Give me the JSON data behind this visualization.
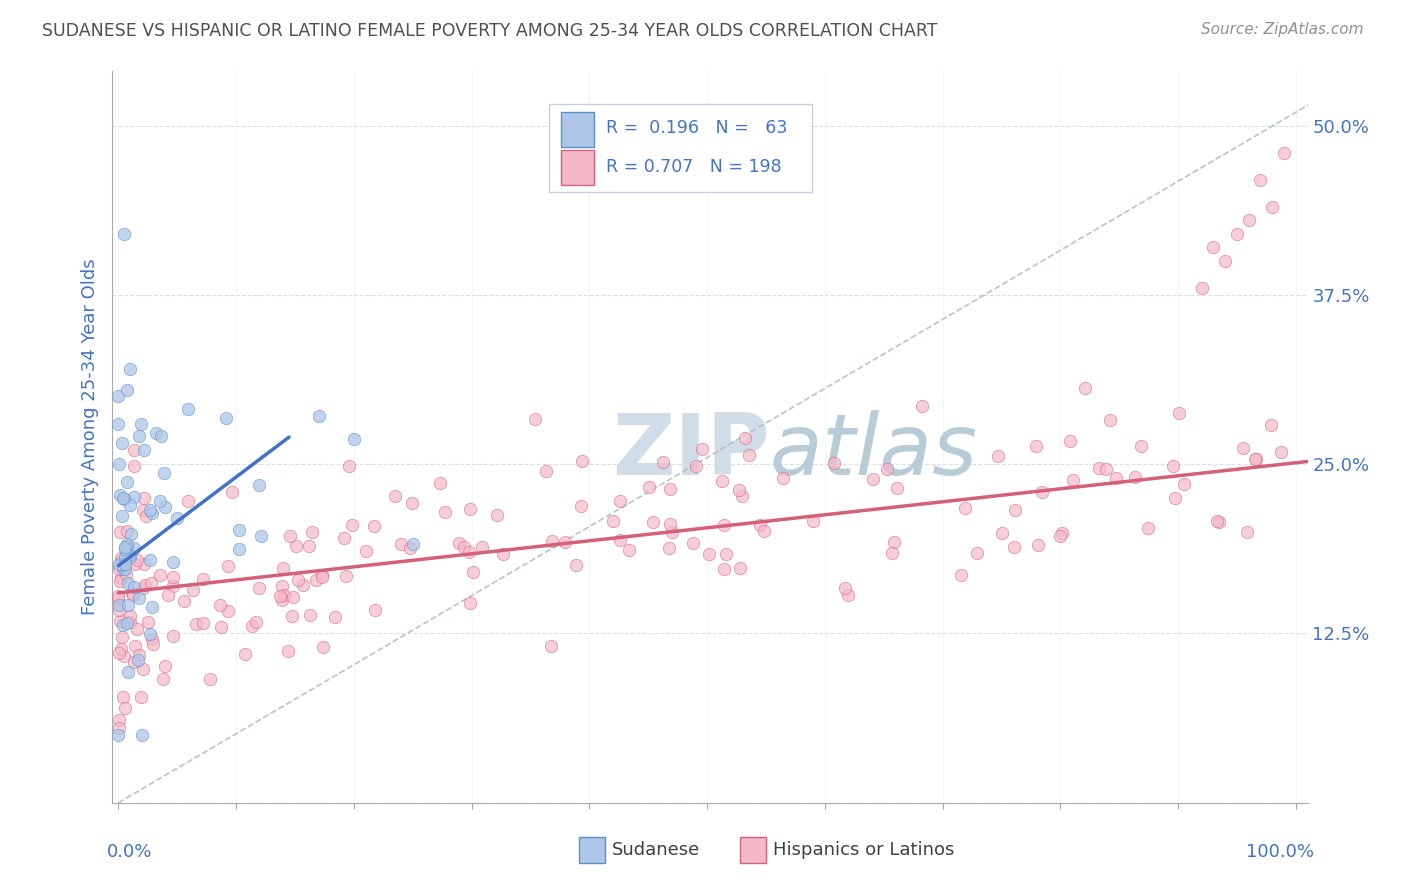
{
  "title": "SUDANESE VS HISPANIC OR LATINO FEMALE POVERTY AMONG 25-34 YEAR OLDS CORRELATION CHART",
  "source": "Source: ZipAtlas.com",
  "ylabel": "Female Poverty Among 25-34 Year Olds",
  "xlim": [
    -0.005,
    1.01
  ],
  "ylim": [
    0.0,
    0.54
  ],
  "yticks": [
    0.0,
    0.125,
    0.25,
    0.375,
    0.5
  ],
  "ytick_labels": [
    "",
    "12.5%",
    "25.0%",
    "37.5%",
    "50.0%"
  ],
  "xtick_labels": [
    "0.0%",
    "",
    "",
    "",
    "",
    "",
    "",
    "",
    "",
    "",
    "100.0%"
  ],
  "color_sudanese": "#aec6e8",
  "color_sudanese_edge": "#5b8fc9",
  "color_hispanic": "#f5b8c8",
  "color_hispanic_edge": "#d06080",
  "color_sudanese_line": "#4472c4",
  "color_hispanic_line": "#d4607a",
  "diagonal_color": "#b0bec5",
  "watermark_color": "#d0dce8",
  "title_color": "#505050",
  "axis_label_color": "#4472c4",
  "source_color": "#909090",
  "grid_color": "#d8dce8",
  "legend_border_color": "#c8d0dc"
}
